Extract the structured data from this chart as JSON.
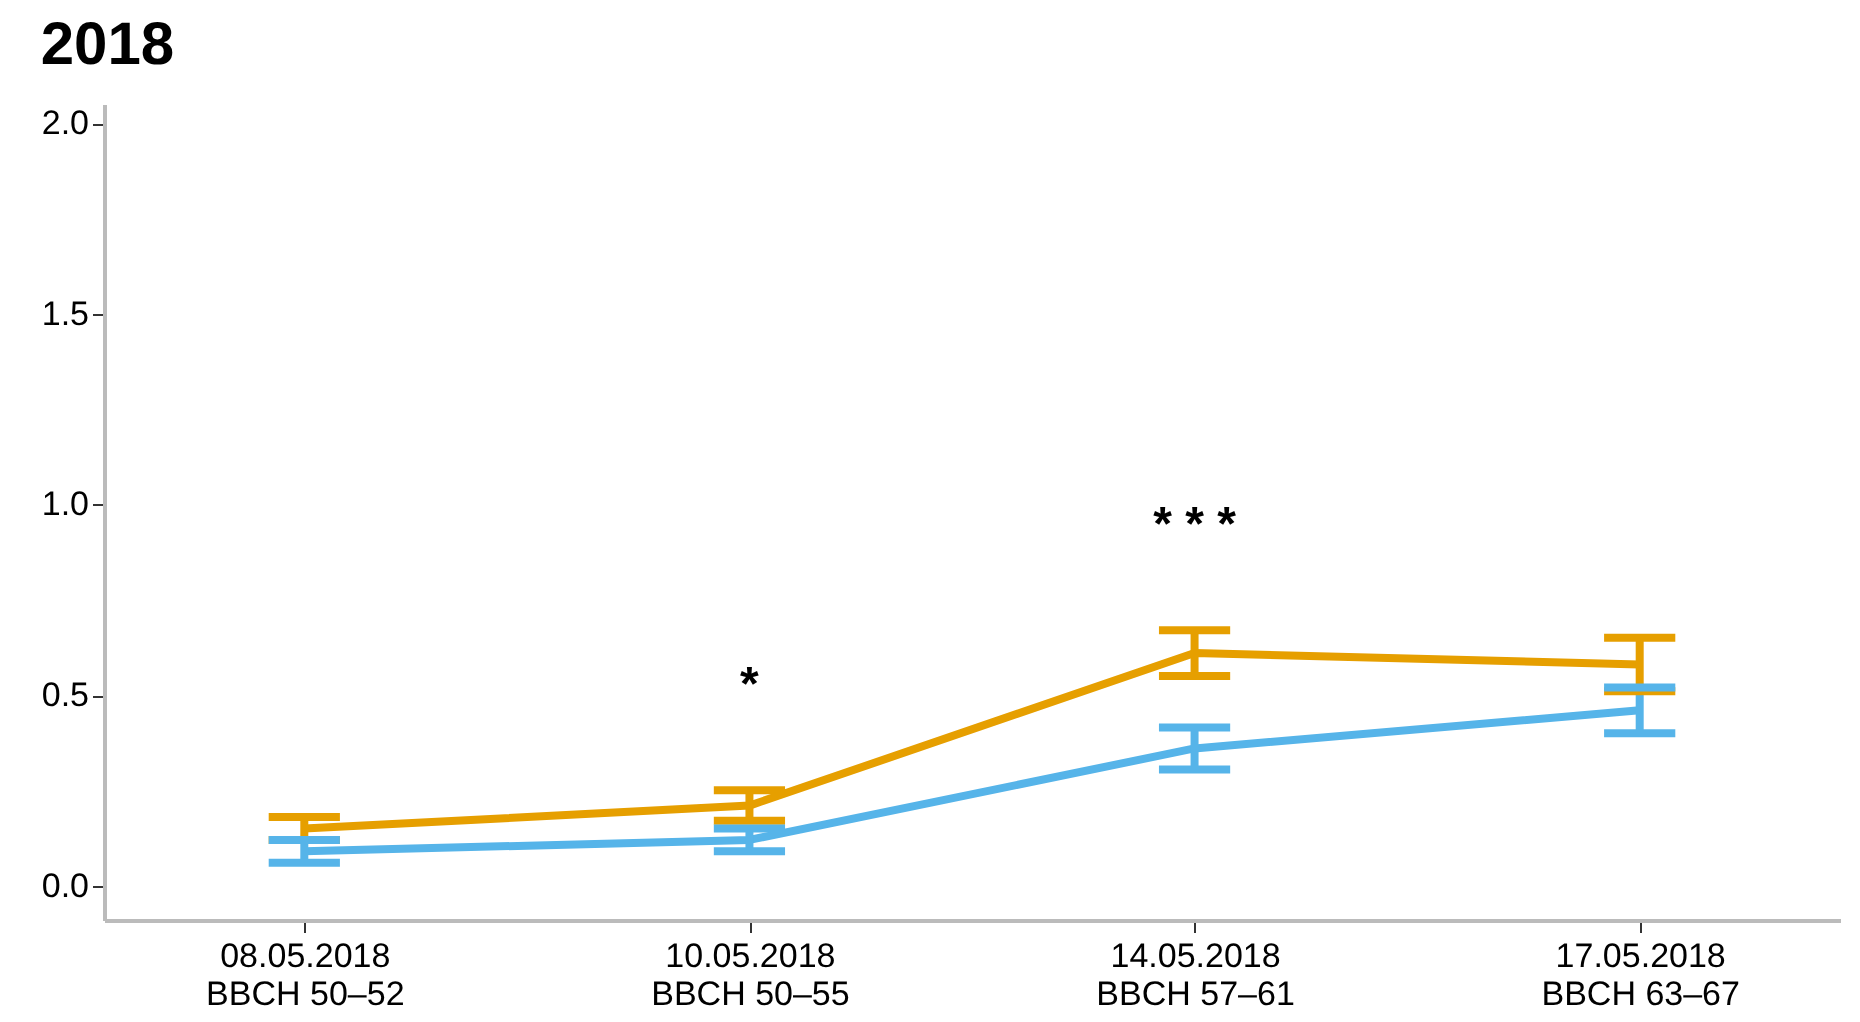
{
  "chart_data": {
    "type": "line",
    "title": "2018",
    "categories": [
      "08.05.2018\nBBCH 50–52",
      "10.05.2018\nBBCH 50–55",
      "14.05.2018\nBBCH 57–61",
      "17.05.2018\nBBCH 63–67"
    ],
    "series": [
      {
        "color": "#56b4e9",
        "values": [
          0.09,
          0.12,
          0.36,
          0.46
        ],
        "errors": [
          0.03,
          0.03,
          0.055,
          0.06
        ]
      },
      {
        "color": "#e69f00",
        "values": [
          0.15,
          0.21,
          0.61,
          0.58
        ],
        "errors": [
          0.03,
          0.04,
          0.06,
          0.07
        ]
      }
    ],
    "ylim": [
      -0.09,
      2.05
    ],
    "yticks": [
      {
        "value": 0,
        "label": "0.0"
      },
      {
        "value": 0.5,
        "label": "0.5"
      },
      {
        "value": 1,
        "label": "1.0"
      },
      {
        "value": 1.5,
        "label": "1.5"
      },
      {
        "value": 2,
        "label": "2.0"
      }
    ],
    "annotations": [
      "*",
      "* * *"
    ],
    "grid": false,
    "legend": false,
    "marker": "none",
    "line_style": "solid"
  }
}
